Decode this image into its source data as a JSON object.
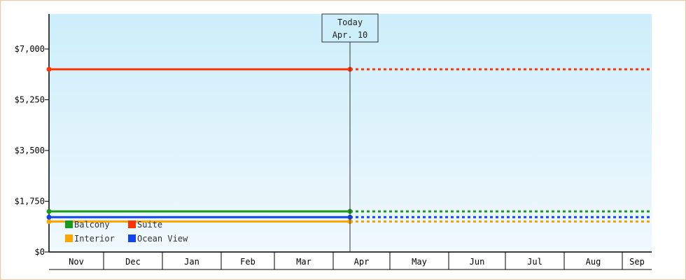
{
  "chart_data": {
    "type": "line",
    "title": "",
    "xlabel": "",
    "ylabel": "",
    "y_tick_labels": [
      "$0",
      "$1,750",
      "$3,500",
      "$5,250",
      "$7,000"
    ],
    "y_ticks": [
      0,
      1750,
      3500,
      5250,
      7000
    ],
    "ylim": [
      0,
      7000
    ],
    "x_categories": [
      "Nov",
      "Dec",
      "Jan",
      "Feb",
      "Mar",
      "Apr",
      "May",
      "Jun",
      "Jul",
      "Aug",
      "Sep"
    ],
    "today": {
      "line1": "Today",
      "line2": "Apr. 10"
    },
    "legend_position": "bottom-left",
    "grid": false,
    "background": [
      "#cdeefb",
      "#f0f9fd"
    ],
    "series": [
      {
        "name": "Balcony",
        "color": "#1a9a1a",
        "value": 1400,
        "projected": true
      },
      {
        "name": "Suite",
        "color": "#ff3300",
        "value": 6300,
        "projected": true
      },
      {
        "name": "Interior",
        "color": "#ffa500",
        "value": 1050,
        "projected": true
      },
      {
        "name": "Ocean View",
        "color": "#1144ee",
        "value": 1200,
        "projected": true
      }
    ]
  }
}
